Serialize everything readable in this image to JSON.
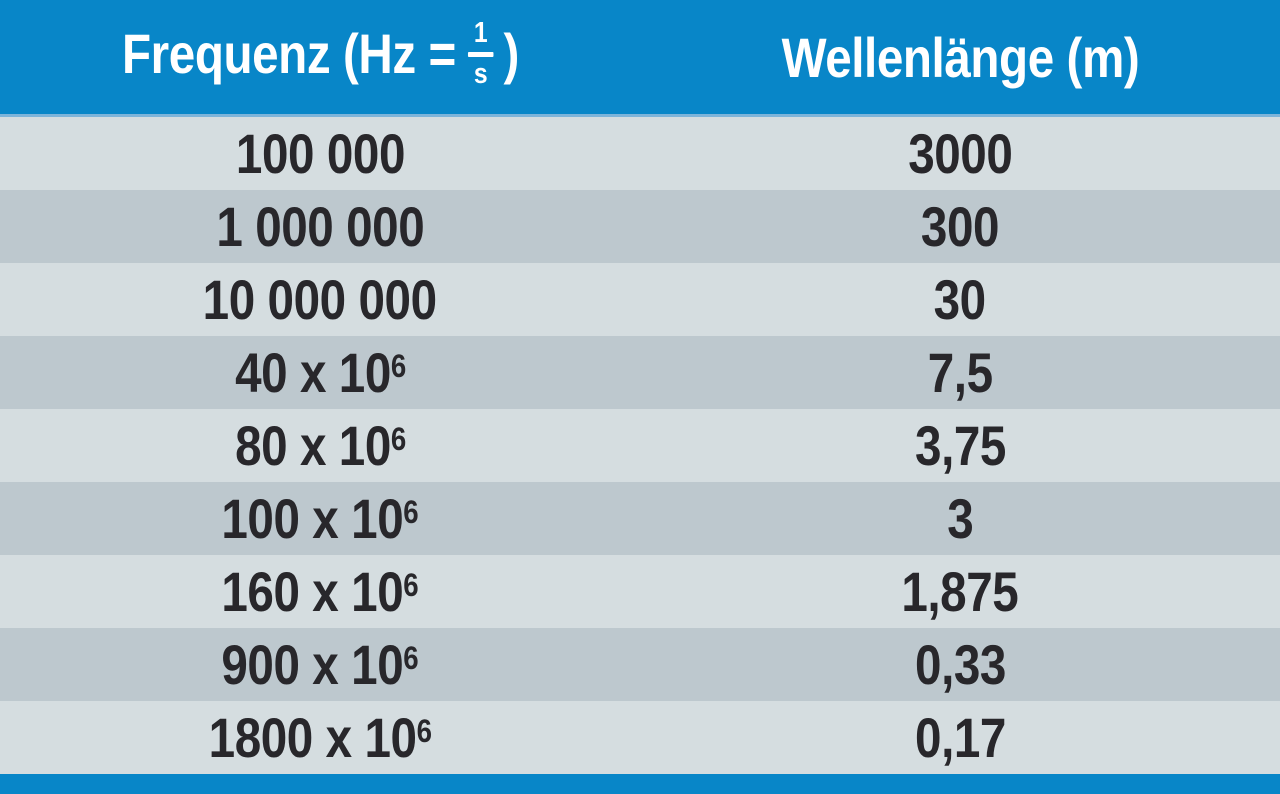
{
  "header": {
    "col1_prefix": "Frequenz (Hz =",
    "frac_numerator": "1",
    "frac_denominator": "s",
    "col1_suffix": ")",
    "col2": "Wellenlänge (m)"
  },
  "rows": [
    {
      "freq_base": "100 000",
      "freq_exp": "",
      "wavelength": "3000"
    },
    {
      "freq_base": "1 000 000",
      "freq_exp": "",
      "wavelength": "300"
    },
    {
      "freq_base": "10 000 000",
      "freq_exp": "",
      "wavelength": "30"
    },
    {
      "freq_base": "40 x 10",
      "freq_exp": "6",
      "wavelength": "7,5"
    },
    {
      "freq_base": "80 x 10",
      "freq_exp": "6",
      "wavelength": "3,75"
    },
    {
      "freq_base": "100 x 10",
      "freq_exp": "6",
      "wavelength": "3"
    },
    {
      "freq_base": "160 x 10",
      "freq_exp": "6",
      "wavelength": "1,875"
    },
    {
      "freq_base": "900 x 10",
      "freq_exp": "6",
      "wavelength": "0,33"
    },
    {
      "freq_base": "1800 x 10",
      "freq_exp": "6",
      "wavelength": "0,17"
    }
  ],
  "colors": {
    "header_blue": "#0886c8",
    "row_light": "#d5dde0",
    "row_dark": "#bdc8ce",
    "header_text": "#ffffff",
    "cell_text": "#28272b",
    "header_separator": "#7db4da"
  },
  "chart_data": {
    "type": "table",
    "columns": [
      "Frequenz (Hz = 1/s)",
      "Wellenlänge (m)"
    ],
    "rows": [
      [
        "100 000",
        "3000"
      ],
      [
        "1 000 000",
        "300"
      ],
      [
        "10 000 000",
        "30"
      ],
      [
        "40 x 10^6",
        "7,5"
      ],
      [
        "80 x 10^6",
        "3,75"
      ],
      [
        "100 x 10^6",
        "3"
      ],
      [
        "160 x 10^6",
        "1,875"
      ],
      [
        "900 x 10^6",
        "0,33"
      ],
      [
        "1800 x 10^6",
        "0,17"
      ]
    ],
    "frequency_hz": [
      100000,
      1000000,
      10000000,
      40000000,
      80000000,
      100000000,
      160000000,
      900000000,
      1800000000
    ],
    "wavelength_m": [
      3000,
      300,
      30,
      7.5,
      3.75,
      3,
      1.875,
      0.33,
      0.17
    ],
    "layout": "two-column table, alternating light/dark gray rows, blue header band and blue bottom bar"
  }
}
